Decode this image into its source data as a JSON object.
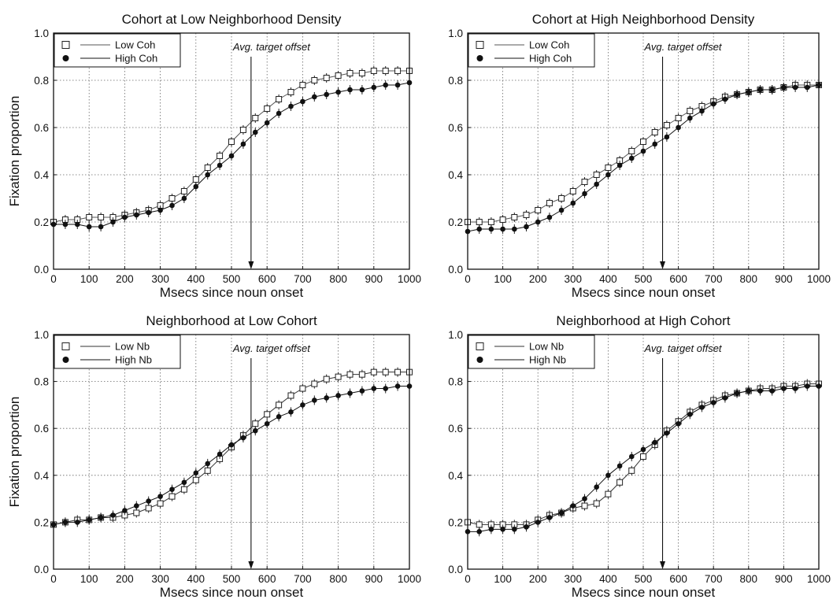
{
  "chart_data": [
    {
      "type": "line",
      "title": "Cohort at Low Neighborhood Density",
      "xlabel": "Msecs since noun onset",
      "ylabel": "Fixation proportion",
      "xlim": [
        0,
        1000
      ],
      "ylim": [
        0,
        1
      ],
      "xticks": [
        "0",
        "100",
        "200",
        "300",
        "400",
        "500",
        "600",
        "700",
        "800",
        "900",
        "1000"
      ],
      "yticks": [
        "0.0",
        "0.2",
        "0.4",
        "0.6",
        "0.8",
        "1.0"
      ],
      "grid": true,
      "legend_position": "top-left",
      "annotation": {
        "text": "Avg. target offset",
        "x": 555
      },
      "x": [
        0,
        33,
        67,
        100,
        133,
        167,
        200,
        233,
        267,
        300,
        333,
        367,
        400,
        433,
        467,
        500,
        533,
        567,
        600,
        633,
        667,
        700,
        733,
        767,
        800,
        833,
        867,
        900,
        933,
        967,
        1000
      ],
      "series": [
        {
          "name": "Low Coh",
          "marker": "open-square",
          "color": "#555555",
          "values": [
            0.2,
            0.21,
            0.21,
            0.22,
            0.22,
            0.22,
            0.23,
            0.24,
            0.25,
            0.27,
            0.3,
            0.33,
            0.38,
            0.43,
            0.48,
            0.54,
            0.59,
            0.64,
            0.68,
            0.72,
            0.75,
            0.78,
            0.8,
            0.81,
            0.82,
            0.83,
            0.83,
            0.84,
            0.84,
            0.84,
            0.84
          ]
        },
        {
          "name": "High Coh",
          "marker": "filled-circle",
          "color": "#111111",
          "values": [
            0.19,
            0.19,
            0.19,
            0.18,
            0.18,
            0.2,
            0.22,
            0.23,
            0.24,
            0.25,
            0.27,
            0.3,
            0.35,
            0.4,
            0.44,
            0.48,
            0.53,
            0.58,
            0.62,
            0.66,
            0.69,
            0.71,
            0.73,
            0.74,
            0.75,
            0.76,
            0.76,
            0.77,
            0.78,
            0.78,
            0.79
          ]
        }
      ]
    },
    {
      "type": "line",
      "title": "Cohort at High Neighborhood Density",
      "xlabel": "Msecs since noun onset",
      "ylabel": "",
      "xlim": [
        0,
        1000
      ],
      "ylim": [
        0,
        1
      ],
      "xticks": [
        "0",
        "100",
        "200",
        "300",
        "400",
        "500",
        "600",
        "700",
        "800",
        "900",
        "1000"
      ],
      "yticks": [
        "0.0",
        "0.2",
        "0.4",
        "0.6",
        "0.8",
        "1.0"
      ],
      "grid": true,
      "legend_position": "top-left",
      "annotation": {
        "text": "Avg. target offset",
        "x": 555
      },
      "x": [
        0,
        33,
        67,
        100,
        133,
        167,
        200,
        233,
        267,
        300,
        333,
        367,
        400,
        433,
        467,
        500,
        533,
        567,
        600,
        633,
        667,
        700,
        733,
        767,
        800,
        833,
        867,
        900,
        933,
        967,
        1000
      ],
      "series": [
        {
          "name": "Low Coh",
          "marker": "open-square",
          "color": "#555555",
          "values": [
            0.2,
            0.2,
            0.2,
            0.21,
            0.22,
            0.23,
            0.25,
            0.28,
            0.3,
            0.33,
            0.37,
            0.4,
            0.43,
            0.46,
            0.5,
            0.54,
            0.58,
            0.61,
            0.64,
            0.67,
            0.69,
            0.71,
            0.73,
            0.74,
            0.75,
            0.76,
            0.76,
            0.77,
            0.78,
            0.78,
            0.78
          ]
        },
        {
          "name": "High Coh",
          "marker": "filled-circle",
          "color": "#111111",
          "values": [
            0.16,
            0.17,
            0.17,
            0.17,
            0.17,
            0.18,
            0.2,
            0.22,
            0.25,
            0.28,
            0.32,
            0.36,
            0.4,
            0.44,
            0.47,
            0.5,
            0.53,
            0.56,
            0.6,
            0.64,
            0.67,
            0.7,
            0.72,
            0.74,
            0.75,
            0.76,
            0.76,
            0.77,
            0.77,
            0.77,
            0.78
          ]
        }
      ]
    },
    {
      "type": "line",
      "title": "Neighborhood at Low Cohort",
      "xlabel": "Msecs since noun onset",
      "ylabel": "Fixation proportion",
      "xlim": [
        0,
        1000
      ],
      "ylim": [
        0,
        1
      ],
      "xticks": [
        "0",
        "100",
        "200",
        "300",
        "400",
        "500",
        "600",
        "700",
        "800",
        "900",
        "1000"
      ],
      "yticks": [
        "0.0",
        "0.2",
        "0.4",
        "0.6",
        "0.8",
        "1.0"
      ],
      "grid": true,
      "legend_position": "top-left",
      "annotation": {
        "text": "Avg. target offset",
        "x": 555
      },
      "x": [
        0,
        33,
        67,
        100,
        133,
        167,
        200,
        233,
        267,
        300,
        333,
        367,
        400,
        433,
        467,
        500,
        533,
        567,
        600,
        633,
        667,
        700,
        733,
        767,
        800,
        833,
        867,
        900,
        933,
        967,
        1000
      ],
      "series": [
        {
          "name": "Low Nb",
          "marker": "open-square",
          "color": "#333333",
          "values": [
            0.19,
            0.2,
            0.21,
            0.21,
            0.22,
            0.22,
            0.23,
            0.24,
            0.26,
            0.28,
            0.31,
            0.34,
            0.38,
            0.42,
            0.47,
            0.52,
            0.57,
            0.62,
            0.66,
            0.7,
            0.74,
            0.77,
            0.79,
            0.81,
            0.82,
            0.83,
            0.83,
            0.84,
            0.84,
            0.84,
            0.84
          ]
        },
        {
          "name": "High Nb",
          "marker": "filled-circle",
          "color": "#111111",
          "values": [
            0.19,
            0.2,
            0.2,
            0.21,
            0.22,
            0.23,
            0.25,
            0.27,
            0.29,
            0.31,
            0.34,
            0.37,
            0.41,
            0.45,
            0.49,
            0.53,
            0.56,
            0.59,
            0.62,
            0.65,
            0.67,
            0.7,
            0.72,
            0.73,
            0.74,
            0.75,
            0.76,
            0.77,
            0.77,
            0.78,
            0.78
          ]
        }
      ]
    },
    {
      "type": "line",
      "title": "Neighborhood at High Cohort",
      "xlabel": "Msecs since noun onset",
      "ylabel": "",
      "xlim": [
        0,
        1000
      ],
      "ylim": [
        0,
        1
      ],
      "xticks": [
        "0",
        "100",
        "200",
        "300",
        "400",
        "500",
        "600",
        "700",
        "800",
        "900",
        "1000"
      ],
      "yticks": [
        "0.0",
        "0.2",
        "0.4",
        "0.6",
        "0.8",
        "1.0"
      ],
      "grid": true,
      "legend_position": "top-left",
      "annotation": {
        "text": "Avg. target offset",
        "x": 555
      },
      "x": [
        0,
        33,
        67,
        100,
        133,
        167,
        200,
        233,
        267,
        300,
        333,
        367,
        400,
        433,
        467,
        500,
        533,
        567,
        600,
        633,
        667,
        700,
        733,
        767,
        800,
        833,
        867,
        900,
        933,
        967,
        1000
      ],
      "series": [
        {
          "name": "Low Nb",
          "marker": "open-square",
          "color": "#333333",
          "values": [
            0.2,
            0.19,
            0.19,
            0.19,
            0.19,
            0.19,
            0.21,
            0.23,
            0.24,
            0.26,
            0.27,
            0.28,
            0.32,
            0.37,
            0.42,
            0.48,
            0.53,
            0.59,
            0.63,
            0.67,
            0.7,
            0.72,
            0.74,
            0.75,
            0.76,
            0.77,
            0.77,
            0.78,
            0.78,
            0.79,
            0.79
          ]
        },
        {
          "name": "High Nb",
          "marker": "filled-circle",
          "color": "#111111",
          "values": [
            0.16,
            0.16,
            0.17,
            0.17,
            0.17,
            0.18,
            0.2,
            0.22,
            0.24,
            0.27,
            0.3,
            0.35,
            0.4,
            0.44,
            0.48,
            0.51,
            0.54,
            0.58,
            0.62,
            0.66,
            0.69,
            0.71,
            0.73,
            0.75,
            0.76,
            0.76,
            0.76,
            0.77,
            0.77,
            0.78,
            0.78
          ]
        }
      ]
    }
  ]
}
